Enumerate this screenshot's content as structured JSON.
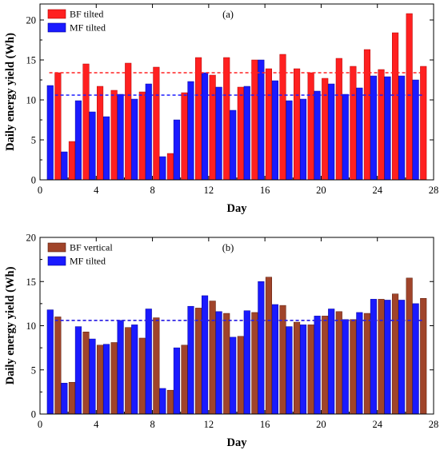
{
  "chart_data": [
    {
      "type": "bar",
      "panel_label": "(a)",
      "xlabel": "Day",
      "ylabel": "Daily energy yield (Wh)",
      "xlim": [
        0,
        28
      ],
      "ylim": [
        0,
        22
      ],
      "xticks": [
        0,
        4,
        8,
        12,
        16,
        20,
        24,
        28
      ],
      "yticks": [
        0,
        5,
        10,
        15,
        20
      ],
      "legend_position": "top-left",
      "x": [
        1,
        2,
        3,
        4,
        5,
        6,
        7,
        8,
        9,
        10,
        11,
        12,
        13,
        14,
        15,
        16,
        17,
        18,
        19,
        20,
        21,
        22,
        23,
        24,
        25,
        26,
        27
      ],
      "series": [
        {
          "name": "BF tilted",
          "color": "#ff2020",
          "values": [
            13.4,
            4.8,
            14.5,
            11.7,
            11.2,
            14.6,
            11.0,
            14.1,
            3.3,
            10.9,
            15.3,
            13.1,
            15.3,
            11.6,
            15.0,
            13.9,
            15.7,
            13.9,
            13.4,
            12.7,
            15.2,
            14.2,
            16.3,
            13.8,
            18.4,
            20.8,
            14.2
          ]
        },
        {
          "name": "MF tilted",
          "color": "#1a1aff",
          "values": [
            11.8,
            3.5,
            9.9,
            8.5,
            7.9,
            10.7,
            10.1,
            12.0,
            2.9,
            7.5,
            12.3,
            13.4,
            11.6,
            8.7,
            11.7,
            15.0,
            12.4,
            9.9,
            10.1,
            11.1,
            12.0,
            10.7,
            11.5,
            13.0,
            12.9,
            13.0,
            12.5
          ]
        }
      ],
      "average_lines": [
        {
          "series": "BF tilted",
          "value": 13.4,
          "color": "#ff2020"
        },
        {
          "series": "MF tilted",
          "value": 10.6,
          "color": "#1a1aff"
        }
      ]
    },
    {
      "type": "bar",
      "panel_label": "(b)",
      "xlabel": "Day",
      "ylabel": "Daily energy yield (Wh)",
      "xlim": [
        0,
        28
      ],
      "ylim": [
        0,
        20
      ],
      "xticks": [
        0,
        4,
        8,
        12,
        16,
        20,
        24,
        28
      ],
      "yticks": [
        0,
        5,
        10,
        15,
        20
      ],
      "legend_position": "top-left",
      "x": [
        1,
        2,
        3,
        4,
        5,
        6,
        7,
        8,
        9,
        10,
        11,
        12,
        13,
        14,
        15,
        16,
        17,
        18,
        19,
        20,
        21,
        22,
        23,
        24,
        25,
        26,
        27
      ],
      "series": [
        {
          "name": "BF vertical",
          "color": "#a0442a",
          "values": [
            11.0,
            3.6,
            9.3,
            7.8,
            8.1,
            9.8,
            8.6,
            10.9,
            2.7,
            7.8,
            12.0,
            12.8,
            11.4,
            8.8,
            11.5,
            15.5,
            12.3,
            10.4,
            10.1,
            11.1,
            11.6,
            10.7,
            11.4,
            13.0,
            13.6,
            15.4,
            13.1
          ]
        },
        {
          "name": "MF tilted",
          "color": "#1a1aff",
          "values": [
            11.8,
            3.5,
            9.9,
            8.5,
            7.9,
            10.6,
            10.1,
            11.9,
            2.9,
            7.5,
            12.2,
            13.4,
            11.6,
            8.7,
            11.7,
            15.0,
            12.4,
            9.9,
            10.1,
            11.1,
            11.9,
            10.7,
            11.5,
            13.0,
            12.9,
            12.9,
            12.5
          ]
        }
      ],
      "average_lines": [
        {
          "series": "BF vertical",
          "value": 10.6,
          "color": "#a0442a"
        },
        {
          "series": "MF tilted",
          "value": 10.6,
          "color": "#1a1aff"
        }
      ]
    }
  ]
}
